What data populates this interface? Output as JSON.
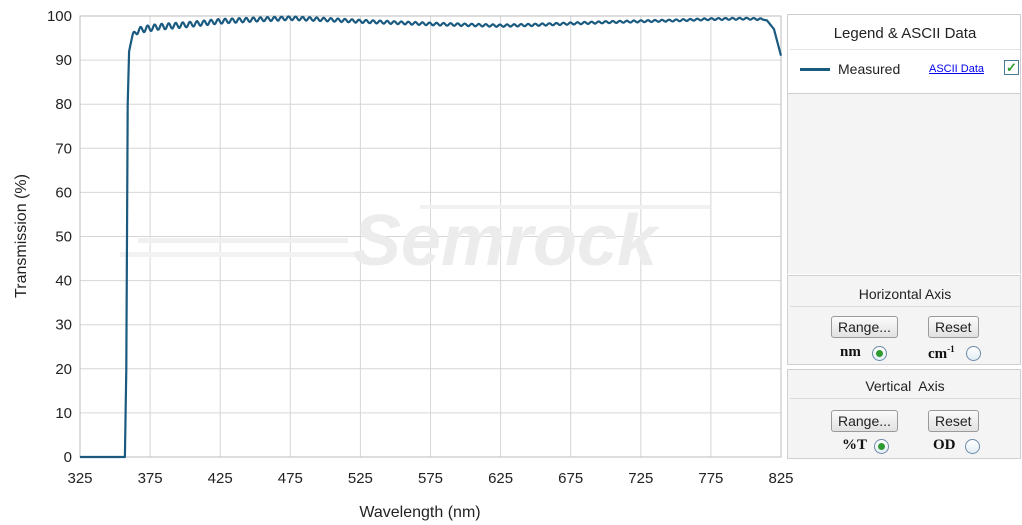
{
  "chart_data": {
    "type": "line",
    "xlabel": "Wavelength (nm)",
    "ylabel": "Transmission (%)",
    "xlim": [
      325,
      825
    ],
    "ylim": [
      0,
      100
    ],
    "x_ticks": [
      325,
      375,
      425,
      475,
      525,
      575,
      625,
      675,
      725,
      775,
      825
    ],
    "y_ticks": [
      0,
      10,
      20,
      30,
      40,
      50,
      60,
      70,
      80,
      90,
      100
    ],
    "grid": true,
    "watermark": "Semrock",
    "series": [
      {
        "name": "Measured",
        "color": "#1a5a80",
        "x": [
          325,
          350,
          357,
          358,
          359,
          360,
          362,
          365,
          370,
          380,
          400,
          425,
          450,
          475,
          500,
          525,
          550,
          575,
          600,
          625,
          650,
          675,
          700,
          725,
          750,
          775,
          800,
          810,
          815,
          820,
          825
        ],
        "y": [
          0,
          0,
          0,
          20,
          80,
          92,
          95,
          96.5,
          97,
          97.5,
          98,
          98.8,
          99.2,
          99.5,
          99.2,
          98.8,
          98.5,
          98.2,
          98,
          97.8,
          98,
          98.3,
          98.6,
          98.8,
          99,
          99.3,
          99.4,
          99.3,
          99,
          97,
          91
        ]
      }
    ]
  },
  "legend_panel": {
    "title": "Legend & ASCII Data",
    "series_label": "Measured",
    "ascii_link": "ASCII Data",
    "ascii_checked": true
  },
  "horizontal_axis_panel": {
    "title": "Horizontal Axis",
    "range_button": "Range...",
    "reset_button": "Reset",
    "unit_nm": "nm",
    "unit_cm": "cm",
    "unit_cm_sup": "-1",
    "selected": "nm"
  },
  "vertical_axis_panel": {
    "title": "Vertical  Axis",
    "range_button": "Range...",
    "reset_button": "Reset",
    "unit_t": "%T",
    "unit_od": "OD",
    "selected": "%T"
  }
}
